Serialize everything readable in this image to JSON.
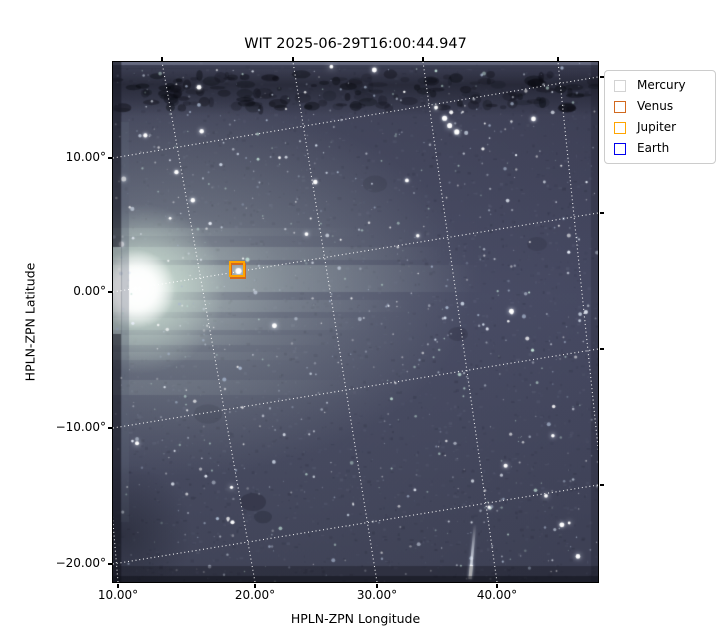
{
  "figure": {
    "title": "WIT 2025-06-29T16:00:44.947",
    "xlabel": "HPLN-ZPN Longitude",
    "ylabel": "HPLN-ZPN Latitude"
  },
  "chart_data": {
    "type": "heatmap",
    "title": "WIT 2025-06-29T16:00:44.947",
    "xlabel": "HPLN-ZPN Longitude",
    "ylabel": "HPLN-ZPN Latitude",
    "x_tick_labels": [
      "10.00°",
      "20.00°",
      "30.00°",
      "40.00°"
    ],
    "y_tick_labels": [
      "10.00°",
      "0.00°",
      "−10.00°",
      "−20.00°"
    ],
    "x_axis_range_deg": [
      9.6,
      49
    ],
    "y_axis_range_deg": [
      -21.3,
      17.1
    ],
    "grid": {
      "style": "dotted",
      "color": "#ffffff",
      "rotation_deg_approx": -9.3
    },
    "legend": {
      "position": "outside-upper-right",
      "items": [
        {
          "label": "Mercury",
          "color": "#D3D3D3"
        },
        {
          "label": "Venus",
          "color": "#D2691E"
        },
        {
          "label": "Jupiter",
          "color": "#FFA500"
        },
        {
          "label": "Earth",
          "color": "#0000EE"
        }
      ]
    },
    "markers_visible": [
      {
        "shape": "square-outline",
        "colors": [
          "#FFA500",
          "#D2691E"
        ],
        "approx_lon_deg": 18.7,
        "approx_lat_deg": 1.5,
        "note": "orange/chocolate square around bright point source"
      }
    ],
    "image_features": {
      "background_color": "#3f4156",
      "bright_glow": {
        "approx_lon_deg": 11,
        "approx_lat_deg": 0.5,
        "appearance": "white-green glow with horizontal streaks at left edge"
      },
      "dark_mottled_band_top": true,
      "bright_streak_bottom_right": {
        "approx_lon_deg": 38,
        "approx_lat_deg": -19
      },
      "starfield": true
    }
  }
}
